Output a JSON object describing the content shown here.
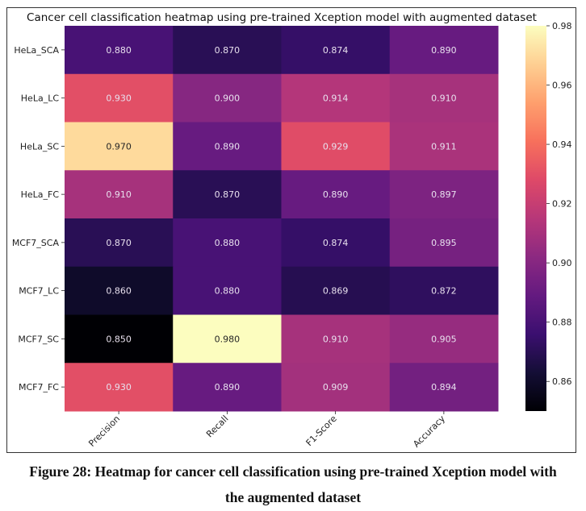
{
  "chart_data": {
    "type": "heatmap",
    "title": "Cancer cell classification heatmap using pre-trained Xception model with augmented dataset",
    "xlabel": "",
    "ylabel": "",
    "x_categories": [
      "Precision",
      "Recall",
      "F1-Score",
      "Accuracy"
    ],
    "y_categories": [
      "HeLa_SCA",
      "HeLa_LC",
      "HeLa_SC",
      "HeLa_FC",
      "MCF7_SCA",
      "MCF7_LC",
      "MCF7_SC",
      "MCF7_FC"
    ],
    "values": [
      [
        0.88,
        0.87,
        0.874,
        0.89
      ],
      [
        0.93,
        0.9,
        0.914,
        0.91
      ],
      [
        0.97,
        0.89,
        0.929,
        0.911
      ],
      [
        0.91,
        0.87,
        0.89,
        0.897
      ],
      [
        0.87,
        0.88,
        0.874,
        0.895
      ],
      [
        0.86,
        0.88,
        0.869,
        0.872
      ],
      [
        0.85,
        0.98,
        0.91,
        0.905
      ],
      [
        0.93,
        0.89,
        0.909,
        0.894
      ]
    ],
    "annotations_format": "0.000",
    "colormap": "magma",
    "colorbar": {
      "range": [
        0.85,
        0.98
      ],
      "ticks": [
        0.86,
        0.88,
        0.9,
        0.92,
        0.94,
        0.96,
        0.98
      ],
      "tick_labels": [
        "0.86",
        "0.88",
        "0.90",
        "0.92",
        "0.94",
        "0.96",
        "0.98"
      ],
      "placement": "right"
    },
    "grid": false
  },
  "caption": {
    "line1": "Figure 28: Heatmap for cancer cell classification using pre-trained Xception model with",
    "line2": "the augmented dataset"
  }
}
